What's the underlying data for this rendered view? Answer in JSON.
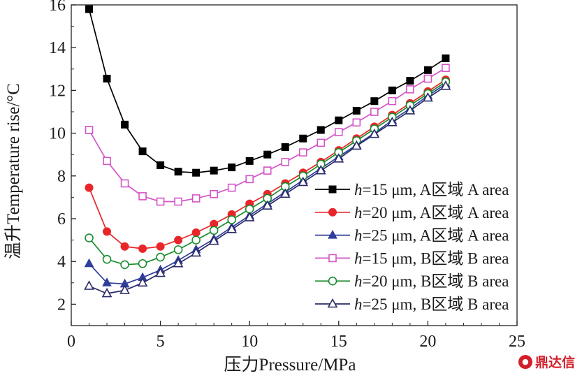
{
  "chart_data": {
    "type": "line",
    "xlabel": "压力Pressure/MPa",
    "ylabel": "温升Temperature rise/°C",
    "xlim": [
      0,
      25
    ],
    "ylim": [
      1,
      16
    ],
    "xticks": [
      "0",
      "5",
      "10",
      "15",
      "20",
      "25"
    ],
    "yticks": [
      "2",
      "4",
      "6",
      "8",
      "10",
      "12",
      "14",
      "16"
    ],
    "x": [
      1,
      2,
      3,
      4,
      5,
      6,
      7,
      8,
      9,
      10,
      11,
      12,
      13,
      14,
      15,
      16,
      17,
      18,
      19,
      20,
      21
    ],
    "grid": false,
    "legend_position": "bottom-right",
    "series": [
      {
        "name": "h=15 μm, A区域 A area",
        "h_label": "h",
        "rest_label": "=15 μm, A区域 A area",
        "color": "#000000",
        "marker": "square-filled",
        "values": [
          15.8,
          12.55,
          10.4,
          9.15,
          8.5,
          8.2,
          8.15,
          8.25,
          8.4,
          8.7,
          9.0,
          9.35,
          9.75,
          10.15,
          10.6,
          11.05,
          11.5,
          12.0,
          12.45,
          12.95,
          13.5
        ]
      },
      {
        "name": "h=20 μm, A区域 A area",
        "h_label": "h",
        "rest_label": "=20 μm, A区域 A area",
        "color": "#e8262a",
        "marker": "circle-filled",
        "values": [
          7.45,
          5.4,
          4.7,
          4.6,
          4.7,
          5.0,
          5.35,
          5.75,
          6.2,
          6.7,
          7.15,
          7.65,
          8.15,
          8.65,
          9.2,
          9.75,
          10.3,
          10.85,
          11.4,
          11.95,
          12.5
        ]
      },
      {
        "name": "h=25 μm, A区域 A area",
        "h_label": "h",
        "rest_label": "=25 μm, A区域 A area",
        "color": "#2f3f9a",
        "marker": "triangle-filled",
        "values": [
          3.9,
          3.0,
          2.95,
          3.25,
          3.6,
          4.05,
          4.55,
          5.05,
          5.6,
          6.15,
          6.7,
          7.25,
          7.8,
          8.35,
          8.9,
          9.45,
          10.0,
          10.6,
          11.15,
          11.75,
          12.3
        ]
      },
      {
        "name": "h=15 μm, B区域 B area",
        "h_label": "h",
        "rest_label": "=15 μm, B区域 B area",
        "color": "#d454c8",
        "marker": "square-open",
        "values": [
          10.15,
          8.7,
          7.65,
          7.05,
          6.8,
          6.8,
          6.95,
          7.15,
          7.45,
          7.85,
          8.25,
          8.65,
          9.1,
          9.55,
          10.05,
          10.5,
          11.0,
          11.5,
          12.05,
          12.55,
          13.05
        ]
      },
      {
        "name": "h=20 μm, B区域 B area",
        "h_label": "h",
        "rest_label": "=20 μm, B区域 B area",
        "color": "#1a8c2e",
        "marker": "circle-open",
        "values": [
          5.1,
          4.1,
          3.85,
          3.9,
          4.2,
          4.55,
          5.0,
          5.45,
          5.95,
          6.45,
          6.95,
          7.5,
          8.0,
          8.55,
          9.1,
          9.65,
          10.2,
          10.75,
          11.3,
          11.85,
          12.4
        ]
      },
      {
        "name": "h=25 μm, B区域 B area",
        "h_label": "h",
        "rest_label": "=25 μm, B区域 B area",
        "color": "#2a2a6a",
        "marker": "triangle-open",
        "values": [
          2.85,
          2.5,
          2.65,
          3.0,
          3.45,
          3.9,
          4.4,
          4.95,
          5.5,
          6.05,
          6.6,
          7.15,
          7.7,
          8.25,
          8.8,
          9.4,
          9.95,
          10.5,
          11.05,
          11.65,
          12.2
        ]
      }
    ]
  },
  "watermark": {
    "text": "鼎达信",
    "icon": "logo-icon"
  }
}
